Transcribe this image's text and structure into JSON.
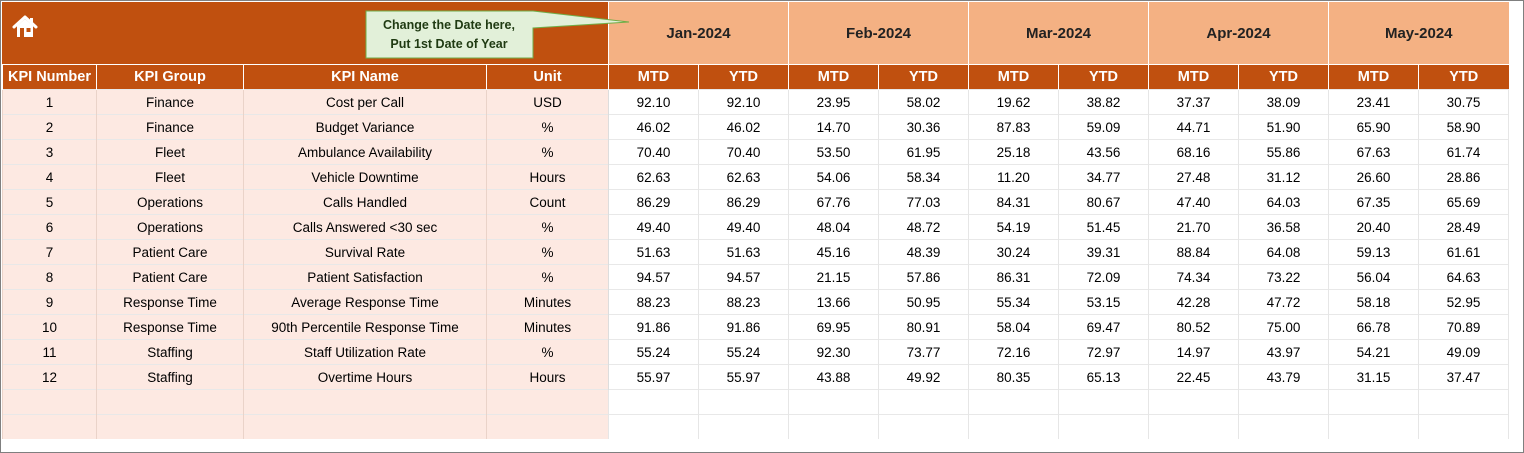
{
  "callout": {
    "line1": "Change the Date here,",
    "line2": "Put 1st Date of Year"
  },
  "icons": {
    "home": "home-icon"
  },
  "colors": {
    "header_dark": "#c0500f",
    "header_light": "#f4b183",
    "left_fill": "#fde9e2",
    "callout_fill": "#e2f0d9",
    "callout_border": "#70ad47"
  },
  "months": [
    "Jan-2024",
    "Feb-2024",
    "Mar-2024",
    "Apr-2024",
    "May-2024"
  ],
  "headers": {
    "kpi_number": "KPI Number",
    "kpi_group": "KPI Group",
    "kpi_name": "KPI Name",
    "unit": "Unit",
    "mtd": "MTD",
    "ytd": "YTD"
  },
  "rows": [
    {
      "num": "1",
      "group": "Finance",
      "name": "Cost per Call",
      "unit": "USD",
      "values": [
        "92.10",
        "92.10",
        "23.95",
        "58.02",
        "19.62",
        "38.82",
        "37.37",
        "38.09",
        "23.41",
        "30.75"
      ]
    },
    {
      "num": "2",
      "group": "Finance",
      "name": "Budget Variance",
      "unit": "%",
      "values": [
        "46.02",
        "46.02",
        "14.70",
        "30.36",
        "87.83",
        "59.09",
        "44.71",
        "51.90",
        "65.90",
        "58.90"
      ]
    },
    {
      "num": "3",
      "group": "Fleet",
      "name": "Ambulance Availability",
      "unit": "%",
      "values": [
        "70.40",
        "70.40",
        "53.50",
        "61.95",
        "25.18",
        "43.56",
        "68.16",
        "55.86",
        "67.63",
        "61.74"
      ]
    },
    {
      "num": "4",
      "group": "Fleet",
      "name": "Vehicle Downtime",
      "unit": "Hours",
      "values": [
        "62.63",
        "62.63",
        "54.06",
        "58.34",
        "11.20",
        "34.77",
        "27.48",
        "31.12",
        "26.60",
        "28.86"
      ]
    },
    {
      "num": "5",
      "group": "Operations",
      "name": "Calls Handled",
      "unit": "Count",
      "values": [
        "86.29",
        "86.29",
        "67.76",
        "77.03",
        "84.31",
        "80.67",
        "47.40",
        "64.03",
        "67.35",
        "65.69"
      ]
    },
    {
      "num": "6",
      "group": "Operations",
      "name": "Calls Answered <30 sec",
      "unit": "%",
      "values": [
        "49.40",
        "49.40",
        "48.04",
        "48.72",
        "54.19",
        "51.45",
        "21.70",
        "36.58",
        "20.40",
        "28.49"
      ]
    },
    {
      "num": "7",
      "group": "Patient Care",
      "name": "Survival Rate",
      "unit": "%",
      "values": [
        "51.63",
        "51.63",
        "45.16",
        "48.39",
        "30.24",
        "39.31",
        "88.84",
        "64.08",
        "59.13",
        "61.61"
      ]
    },
    {
      "num": "8",
      "group": "Patient Care",
      "name": "Patient Satisfaction",
      "unit": "%",
      "values": [
        "94.57",
        "94.57",
        "21.15",
        "57.86",
        "86.31",
        "72.09",
        "74.34",
        "73.22",
        "56.04",
        "64.63"
      ]
    },
    {
      "num": "9",
      "group": "Response Time",
      "name": "Average Response Time",
      "unit": "Minutes",
      "values": [
        "88.23",
        "88.23",
        "13.66",
        "50.95",
        "55.34",
        "53.15",
        "42.28",
        "47.72",
        "58.18",
        "52.95"
      ]
    },
    {
      "num": "10",
      "group": "Response Time",
      "name": "90th Percentile Response Time",
      "unit": "Minutes",
      "values": [
        "91.86",
        "91.86",
        "69.95",
        "80.91",
        "58.04",
        "69.47",
        "80.52",
        "75.00",
        "66.78",
        "70.89"
      ]
    },
    {
      "num": "11",
      "group": "Staffing",
      "name": "Staff Utilization Rate",
      "unit": "%",
      "values": [
        "55.24",
        "55.24",
        "92.30",
        "73.77",
        "72.16",
        "72.97",
        "14.97",
        "43.97",
        "54.21",
        "49.09"
      ]
    },
    {
      "num": "12",
      "group": "Staffing",
      "name": "Overtime Hours",
      "unit": "Hours",
      "values": [
        "55.97",
        "55.97",
        "43.88",
        "49.92",
        "80.35",
        "65.13",
        "22.45",
        "43.79",
        "31.15",
        "37.47"
      ]
    }
  ]
}
